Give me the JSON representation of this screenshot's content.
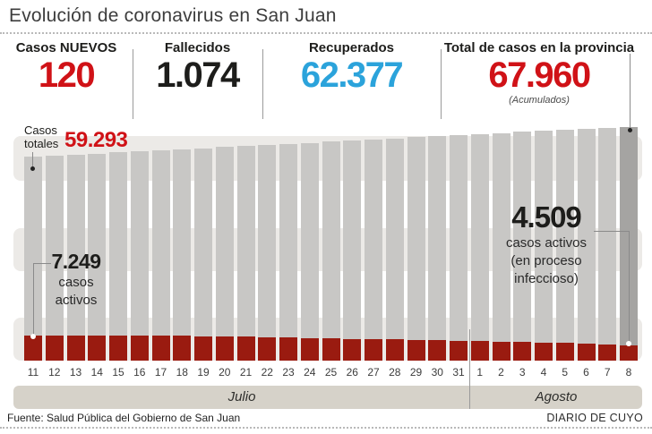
{
  "title": "Evolución de coronavirus en San Juan",
  "colors": {
    "accent_red": "#d01217",
    "accent_blue": "#2ba3db",
    "bar_total": "#c8c7c5",
    "bar_total_highlight": "#a5a4a2",
    "bar_active": "#9a1b10",
    "background_band": "#eceae7",
    "month_band": "#d6d2c9"
  },
  "stats": [
    {
      "label": "Casos NUEVOS",
      "value": "120",
      "color": "#d01217"
    },
    {
      "label": "Fallecidos",
      "value": "1.074",
      "color": "#1d1d1b"
    },
    {
      "label": "Recuperados",
      "value": "62.377",
      "color": "#2ba3db"
    },
    {
      "label": "Total de casos en la provincia",
      "value": "67.960",
      "note": "(Acumulados)",
      "color": "#d01217"
    }
  ],
  "chart_data": {
    "type": "bar",
    "categories": [
      "11",
      "12",
      "13",
      "14",
      "15",
      "16",
      "17",
      "18",
      "19",
      "20",
      "21",
      "22",
      "23",
      "24",
      "25",
      "26",
      "27",
      "28",
      "29",
      "30",
      "31",
      "1",
      "2",
      "3",
      "4",
      "5",
      "6",
      "7",
      "8"
    ],
    "months": [
      {
        "label": "Julio",
        "days": 21
      },
      {
        "label": "Agosto",
        "days": 8
      }
    ],
    "series": [
      {
        "name": "Casos totales",
        "color": "#c8c7c5",
        "values": [
          59293,
          59610,
          59927,
          60243,
          60560,
          60876,
          61193,
          61509,
          61826,
          62142,
          62459,
          62775,
          63092,
          63408,
          63725,
          64041,
          64358,
          64674,
          64991,
          65307,
          65624,
          65940,
          66257,
          66573,
          66890,
          67206,
          67523,
          67840,
          67960
        ]
      },
      {
        "name": "Casos activos",
        "color": "#9a1b10",
        "values": [
          7249,
          7300,
          7380,
          7360,
          7290,
          7320,
          7340,
          7250,
          7140,
          7030,
          6900,
          6780,
          6660,
          6560,
          6450,
          6340,
          6230,
          6120,
          6010,
          5900,
          5790,
          5680,
          5560,
          5440,
          5320,
          5190,
          5050,
          4800,
          4509
        ]
      }
    ],
    "ylim": [
      0,
      68500
    ],
    "grid": "three light horizontal bands",
    "legend": "none",
    "highlight_last_bar": true
  },
  "annotations": {
    "totales_line1": "Casos",
    "totales_line2": "totales",
    "totales_value": "59.293",
    "active_start_value": "7.249",
    "active_start_line1": "casos",
    "active_start_line2": "activos",
    "active_end_value": "4.509",
    "active_end_line1": "casos activos",
    "active_end_line2": "(en proceso",
    "active_end_line3": "infeccioso)"
  },
  "footer": {
    "source": "Fuente: Salud Pública del Gobierno de San Juan",
    "credit": "DIARIO DE CUYO"
  }
}
